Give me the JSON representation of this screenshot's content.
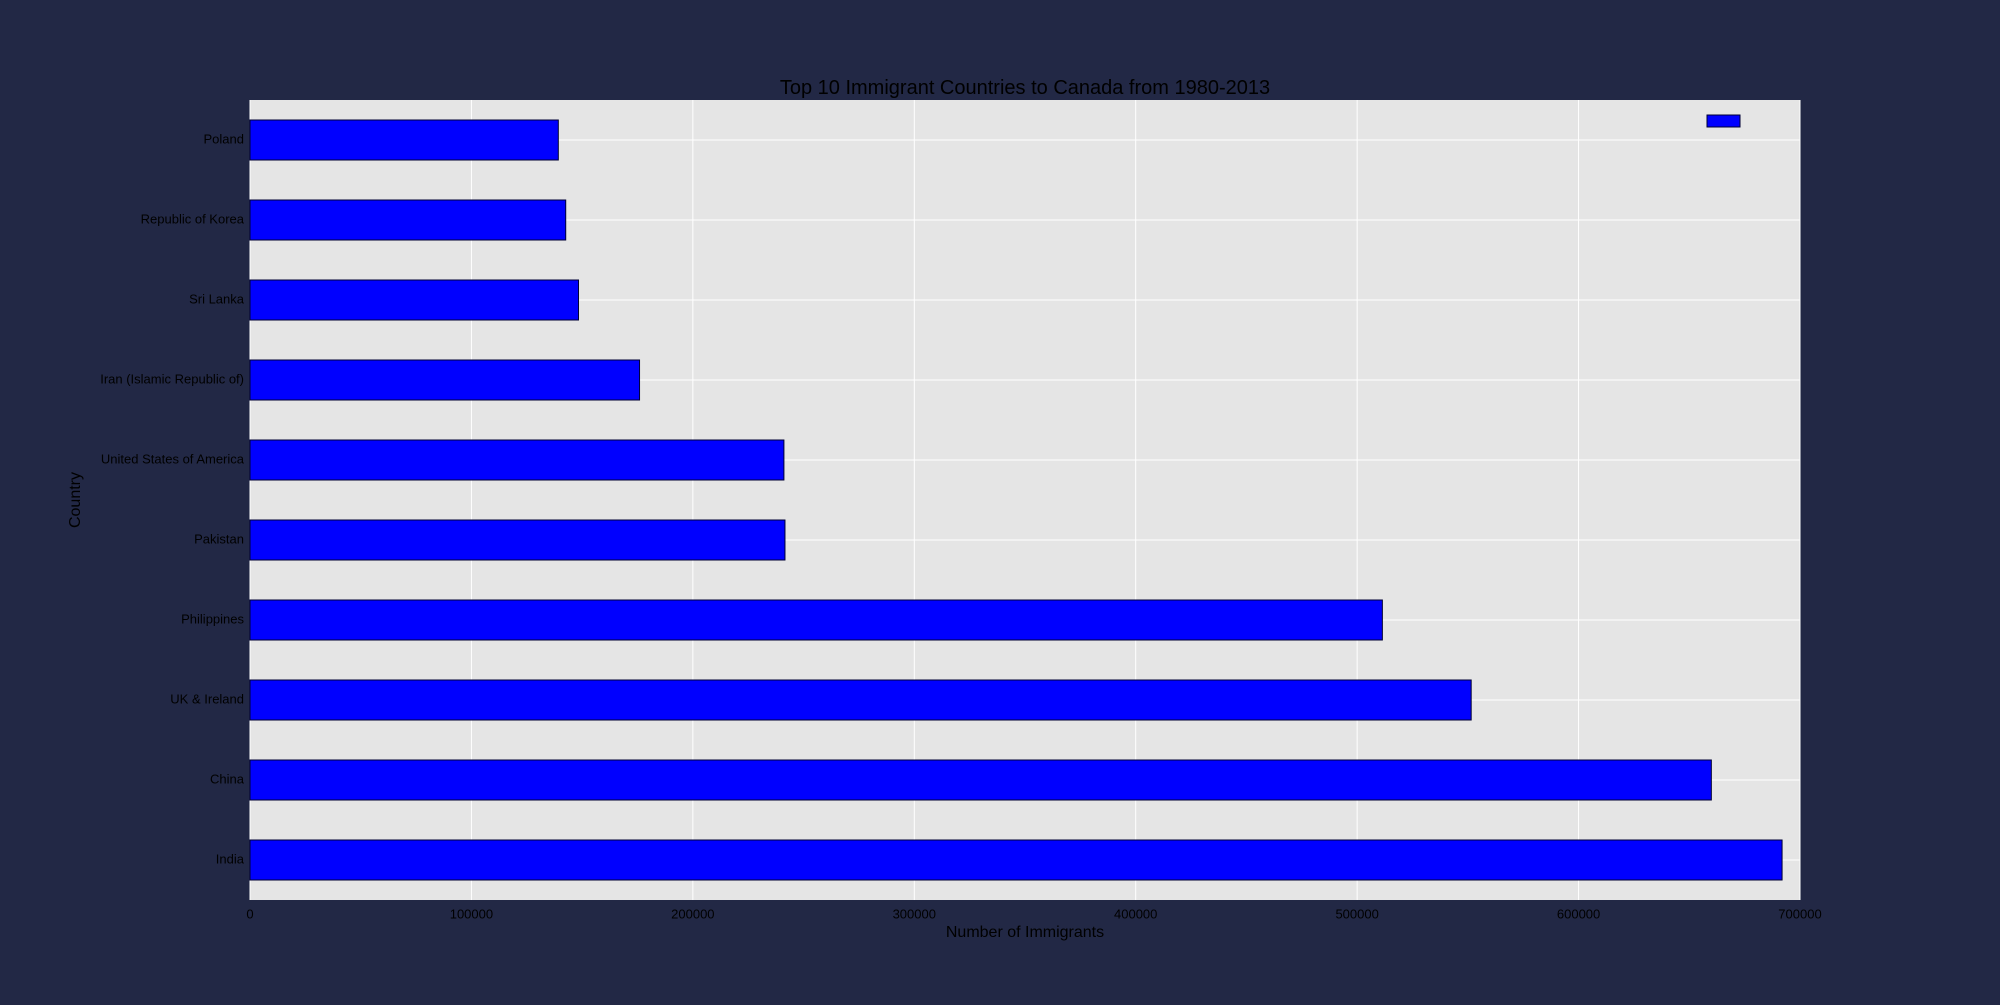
{
  "colors": {
    "page_background": "#222845",
    "plot_background": "#e5e5e5",
    "grid": "#ffffff",
    "bar_fill": "#0000ff",
    "bar_edge": "#000033",
    "text": "#000000"
  },
  "chart_data": {
    "type": "bar",
    "orientation": "horizontal",
    "title": "Top 10 Immigrant Countries to Canada from 1980-2013",
    "xlabel": "Number of Immigrants",
    "ylabel": "Country",
    "xlim": [
      0,
      700000
    ],
    "xticks": [
      0,
      100000,
      200000,
      300000,
      400000,
      500000,
      600000,
      700000
    ],
    "xtick_labels": [
      "0",
      "100000",
      "200000",
      "300000",
      "400000",
      "500000",
      "600000",
      "700000"
    ],
    "grid": true,
    "legend": {
      "placement": "top-right",
      "entries": [
        {
          "label": "",
          "color": "#0000ff"
        }
      ]
    },
    "categories": [
      "India",
      "China",
      "UK & Ireland",
      "Philippines",
      "Pakistan",
      "United States of America",
      "Iran (Islamic Republic of)",
      "Sri Lanka",
      "Republic of Korea",
      "Poland"
    ],
    "values": [
      691904,
      659962,
      551500,
      511391,
      241600,
      241122,
      175923,
      148358,
      142581,
      139241
    ]
  }
}
